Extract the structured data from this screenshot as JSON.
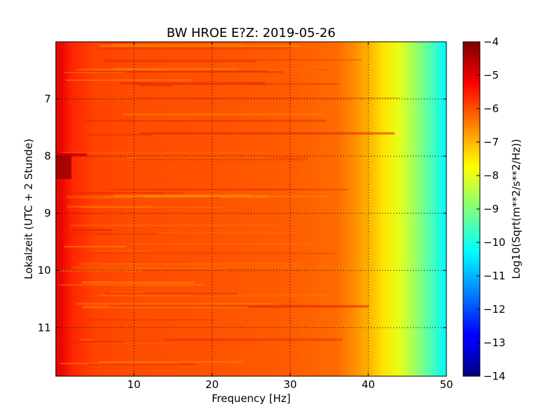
{
  "chart_data": {
    "type": "heatmap",
    "title": "BW HROE E?Z: 2019-05-26",
    "xlabel": "Frequency [Hz]",
    "ylabel": "Lokalzeit (UTC + 2 Stunde)",
    "xlim": [
      0,
      50
    ],
    "ylim": [
      11.85,
      6.0
    ],
    "x_ticks": [
      10,
      20,
      30,
      40,
      50
    ],
    "y_ticks": [
      7,
      8,
      9,
      10,
      11
    ],
    "grid": true,
    "colormap": "jet",
    "colorbar": {
      "label": "Log10(Sqrt(m**2/s**2/Hz))",
      "range": [
        -14,
        -4
      ],
      "ticks": [
        -4,
        -5,
        -6,
        -7,
        -8,
        -9,
        -10,
        -11,
        -12,
        -13,
        -14
      ]
    },
    "frequency_profile": {
      "frequency_hz": [
        0.5,
        2,
        5,
        10,
        20,
        30,
        36,
        38,
        40,
        42,
        44,
        46,
        48,
        50
      ],
      "log10_psd": [
        -5.0,
        -5.6,
        -5.9,
        -6.0,
        -6.05,
        -6.15,
        -6.3,
        -6.6,
        -7.0,
        -7.5,
        -8.0,
        -8.7,
        -9.5,
        -10.3
      ]
    },
    "features": [
      {
        "time_start": 7.95,
        "time_end": 8.4,
        "freq_start": 0,
        "freq_end": 2,
        "log10_psd": -4.3
      },
      {
        "time_start": 7.95,
        "time_end": 8.0,
        "freq_start": 0,
        "freq_end": 4,
        "log10_psd": -4.8
      }
    ]
  },
  "colors": {
    "jet_low": "#00007f",
    "jet_mid": "#7fff7f",
    "jet_high": "#7f0000"
  }
}
